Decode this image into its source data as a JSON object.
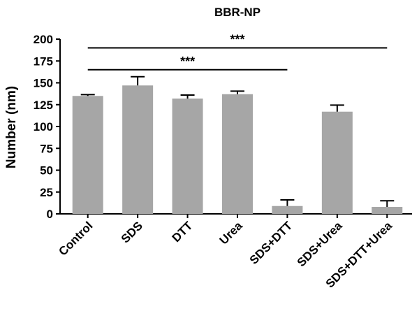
{
  "chart_data": {
    "type": "bar",
    "title": "BBR-NP",
    "ylabel": "Number (nm)",
    "xlabel": "",
    "ylim": [
      0,
      200
    ],
    "yticks": [
      0,
      25,
      50,
      75,
      100,
      125,
      150,
      175,
      200
    ],
    "categories": [
      "Control",
      "SDS",
      "DTT",
      "Urea",
      "SDS+DTT",
      "SDS+Urea",
      "SDS+DTT+Urea"
    ],
    "values": [
      135,
      147,
      132,
      137,
      9,
      117,
      8
    ],
    "error": [
      1.5,
      10,
      4,
      3.5,
      7,
      7.5,
      7
    ],
    "bar_color": "#a6a6a6",
    "grid": false,
    "significance": [
      {
        "from": "Control",
        "to": "SDS+DTT+Urea",
        "y": 190,
        "label": "***"
      },
      {
        "from": "Control",
        "to": "SDS+DTT",
        "y": 165,
        "label": "***"
      }
    ]
  }
}
